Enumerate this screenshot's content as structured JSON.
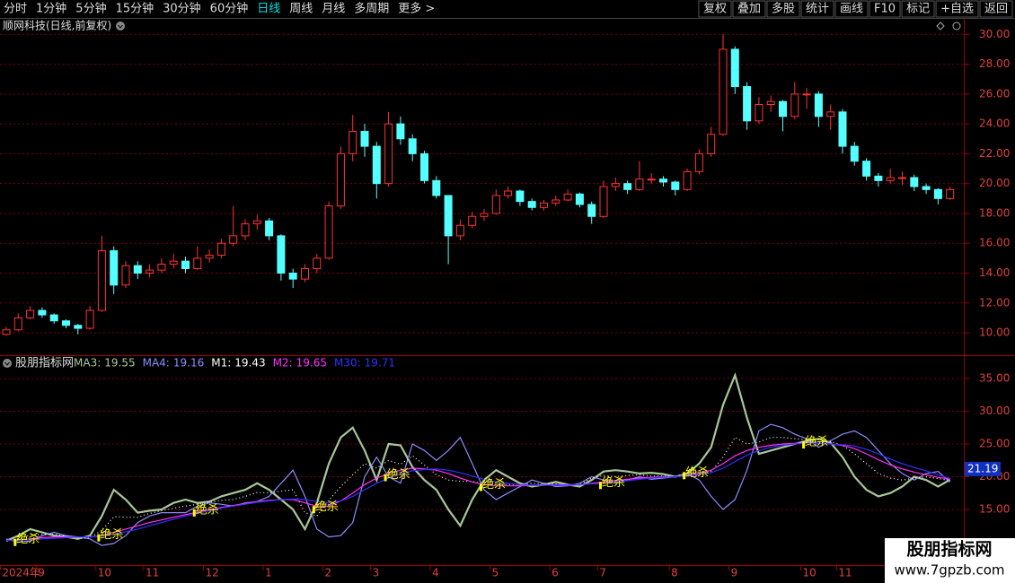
{
  "toolbar": {
    "left": [
      "分时",
      "1分钟",
      "5分钟",
      "15分钟",
      "30分钟",
      "60分钟",
      "日线",
      "周线",
      "月线",
      "多周期",
      "更多 >"
    ],
    "active": 6,
    "right": [
      "复权",
      "叠加",
      "多股",
      "统计",
      "画线",
      "F10",
      "标记",
      "+自选",
      "返回"
    ]
  },
  "chart_data": [
    {
      "type": "candlestick",
      "title": "顺网科技(日线,前复权)",
      "up_color": "#ff3232",
      "down_color": "#54ffff",
      "grid": true,
      "ylim": [
        8.5,
        31.1
      ],
      "yticks": [
        {
          "value": 10,
          "label": "10.00"
        },
        {
          "value": 12,
          "label": "12.00"
        },
        {
          "value": 14,
          "label": "14.00"
        },
        {
          "value": 16,
          "label": "16.00"
        },
        {
          "value": 18,
          "label": "18.00"
        },
        {
          "value": 20,
          "label": "20.00"
        },
        {
          "value": 22,
          "label": "22.00"
        },
        {
          "value": 24,
          "label": "24.00"
        },
        {
          "value": 26,
          "label": "26.00"
        },
        {
          "value": 28,
          "label": "28.00"
        },
        {
          "value": 30,
          "label": "30.00"
        }
      ],
      "ohlc": [
        [
          9.9,
          10.4,
          9.8,
          10.2
        ],
        [
          10.2,
          11.3,
          10.1,
          11
        ],
        [
          11,
          11.8,
          10.9,
          11.5
        ],
        [
          11.5,
          11.7,
          11,
          11.2
        ],
        [
          11.2,
          11.3,
          10.6,
          10.8
        ],
        [
          10.8,
          10.9,
          10.3,
          10.5
        ],
        [
          10.5,
          10.6,
          9.9,
          10.3
        ],
        [
          10.3,
          11.8,
          10.2,
          11.5
        ],
        [
          11.5,
          16.5,
          11.4,
          15.5
        ],
        [
          15.5,
          15.8,
          12.6,
          13.2
        ],
        [
          13.2,
          14.8,
          13,
          14.5
        ],
        [
          14.5,
          14.8,
          13.6,
          14
        ],
        [
          14,
          14.6,
          13.7,
          14.2
        ],
        [
          14.2,
          15,
          14,
          14.6
        ],
        [
          14.6,
          15.3,
          14.3,
          14.8
        ],
        [
          14.8,
          15.1,
          14,
          14.3
        ],
        [
          14.3,
          15.8,
          14.2,
          15
        ],
        [
          15,
          15.6,
          14.7,
          15.2
        ],
        [
          15.2,
          16.3,
          15,
          16
        ],
        [
          16,
          18.5,
          15.8,
          16.5
        ],
        [
          16.5,
          17.6,
          16.2,
          17.3
        ],
        [
          17.3,
          17.9,
          16.9,
          17.5
        ],
        [
          17.5,
          17.7,
          16.2,
          16.5
        ],
        [
          16.5,
          16.6,
          13.5,
          14
        ],
        [
          14,
          14.3,
          13,
          13.6
        ],
        [
          13.6,
          14.6,
          13.4,
          14.3
        ],
        [
          14.3,
          15.3,
          14,
          15
        ],
        [
          15,
          18.8,
          14.9,
          18.5
        ],
        [
          18.5,
          22.5,
          18.3,
          22
        ],
        [
          22,
          24.6,
          21.5,
          23.5
        ],
        [
          23.5,
          24,
          21.8,
          22.5
        ],
        [
          22.5,
          22.8,
          19,
          20
        ],
        [
          20,
          24.8,
          19.8,
          24
        ],
        [
          24,
          24.5,
          22.6,
          23
        ],
        [
          23,
          23.3,
          21.5,
          22
        ],
        [
          22,
          22.2,
          20,
          20.2
        ],
        [
          20.2,
          20.5,
          19,
          19.2
        ],
        [
          19.2,
          19.2,
          14.6,
          16.5
        ],
        [
          16.5,
          17.6,
          16.2,
          17.2
        ],
        [
          17.2,
          18.1,
          17,
          17.8
        ],
        [
          17.8,
          18.3,
          17.5,
          18
        ],
        [
          18,
          19.6,
          17.9,
          19.2
        ],
        [
          19.2,
          19.8,
          19,
          19.5
        ],
        [
          19.5,
          19.6,
          18.5,
          18.8
        ],
        [
          18.8,
          19,
          18.2,
          18.4
        ],
        [
          18.4,
          18.9,
          18.2,
          18.7
        ],
        [
          18.7,
          19.2,
          18.5,
          18.9
        ],
        [
          18.9,
          19.6,
          18.8,
          19.3
        ],
        [
          19.3,
          19.4,
          18.4,
          18.6
        ],
        [
          18.6,
          18.8,
          17.3,
          17.8
        ],
        [
          17.8,
          20.2,
          17.7,
          19.8
        ],
        [
          19.8,
          20.4,
          19.5,
          20
        ],
        [
          20,
          20.2,
          19.3,
          19.6
        ],
        [
          19.6,
          21.5,
          19.5,
          20.3
        ],
        [
          20.3,
          20.7,
          20,
          20.3
        ],
        [
          20.3,
          20.5,
          19.8,
          20.1
        ],
        [
          20.1,
          20.2,
          19.2,
          19.6
        ],
        [
          19.6,
          21,
          19.5,
          20.8
        ],
        [
          20.8,
          22.3,
          20.6,
          22
        ],
        [
          22,
          23.8,
          21.8,
          23.3
        ],
        [
          23.3,
          30,
          23.2,
          29
        ],
        [
          29,
          29.2,
          26,
          26.5
        ],
        [
          26.5,
          26.8,
          23.6,
          24.2
        ],
        [
          24.2,
          25.8,
          24,
          25.3
        ],
        [
          25.3,
          25.9,
          24.8,
          25.5
        ],
        [
          25.5,
          25.6,
          23.5,
          24.5
        ],
        [
          24.5,
          26.8,
          24.3,
          26
        ],
        [
          26,
          26.4,
          25,
          26
        ],
        [
          26,
          26.2,
          23.8,
          24.5
        ],
        [
          24.5,
          25.3,
          23.6,
          24.8
        ],
        [
          24.8,
          25,
          22,
          22.5
        ],
        [
          22.5,
          22.8,
          21.2,
          21.5
        ],
        [
          21.5,
          21.7,
          20.2,
          20.5
        ],
        [
          20.5,
          20.7,
          19.8,
          20.2
        ],
        [
          20.2,
          21,
          20,
          20.4
        ],
        [
          20.4,
          20.8,
          19.9,
          20.4
        ],
        [
          20.4,
          20.6,
          19.5,
          19.8
        ],
        [
          19.8,
          20,
          19.3,
          19.6
        ],
        [
          19.6,
          19.7,
          18.6,
          19
        ],
        [
          19,
          19.8,
          18.9,
          19.6
        ]
      ]
    },
    {
      "type": "line",
      "title": "股朋指标网",
      "grid": true,
      "ylim": [
        6.5,
        38.3
      ],
      "yticks": [
        {
          "value": 15,
          "label": "15.00"
        },
        {
          "value": 20,
          "label": "20.00"
        },
        {
          "value": 25,
          "label": "25.00"
        },
        {
          "value": 30,
          "label": "30.00"
        },
        {
          "value": 35,
          "label": "35.00"
        }
      ],
      "price_tag": 21.19,
      "categories": [
        "2024年",
        null,
        null,
        "9",
        null,
        null,
        null,
        null,
        "10",
        null,
        null,
        null,
        "11",
        null,
        null,
        null,
        null,
        "12",
        null,
        null,
        null,
        null,
        "1",
        null,
        null,
        null,
        null,
        "2",
        null,
        null,
        null,
        "3",
        null,
        null,
        null,
        null,
        "4",
        null,
        null,
        null,
        null,
        "5",
        null,
        null,
        null,
        null,
        "6",
        null,
        null,
        null,
        "7",
        null,
        null,
        null,
        null,
        null,
        "8",
        null,
        null,
        null,
        null,
        "9",
        null,
        null,
        null,
        null,
        null,
        "10",
        null,
        null,
        "11",
        null,
        null,
        null,
        null,
        null,
        null,
        null,
        null,
        null
      ],
      "series": [
        {
          "name": "MA3:",
          "color": "#a8c898",
          "values": [
            10.2,
            11,
            12,
            11.5,
            11,
            10.8,
            10.5,
            11,
            14,
            18,
            16.5,
            14.5,
            14.8,
            15,
            16,
            16.5,
            16,
            16.2,
            17,
            17.5,
            18,
            19,
            18,
            16.5,
            15,
            12,
            16,
            22,
            26,
            27.5,
            24,
            19.5,
            25,
            24.8,
            21.5,
            19.5,
            18,
            15,
            12.5,
            16.5,
            19.5,
            21,
            20,
            19,
            18.5,
            18.8,
            19.2,
            18.8,
            18.5,
            19.5,
            20.8,
            21,
            20.8,
            20.5,
            20.6,
            20.4,
            20,
            20.5,
            22,
            24.5,
            31,
            35.5,
            29,
            23.5,
            24,
            24.5,
            25,
            25.5,
            25.8,
            25.2,
            23,
            20,
            18,
            17,
            17.5,
            18.5,
            20,
            19.5,
            18.5,
            19.55
          ]
        },
        {
          "name": "MA4:",
          "color": "#8c8cff",
          "values": [
            10.5,
            10,
            10.2,
            11,
            11.5,
            11,
            10.8,
            10.5,
            9.5,
            9.8,
            11,
            13,
            14,
            14.5,
            14.5,
            14.5,
            15.5,
            16,
            15.8,
            15.5,
            16,
            16.2,
            17,
            19,
            21,
            17,
            12,
            10.8,
            11,
            13,
            20,
            23,
            20,
            19,
            25,
            24,
            22.5,
            24,
            26,
            22,
            18,
            16.5,
            17.5,
            18.5,
            19.5,
            19,
            18.5,
            18.6,
            19,
            20,
            19.5,
            19,
            19.5,
            20,
            19.6,
            19.8,
            20,
            20.5,
            19.5,
            17,
            15,
            16.5,
            21,
            27,
            28,
            27.5,
            26.5,
            25.8,
            24.5,
            25.5,
            26.5,
            27,
            26,
            24,
            22,
            20.5,
            19.5,
            20.5,
            20.8,
            19.16
          ]
        },
        {
          "name": "M1:",
          "color": "#ffffff",
          "values": [
            10.3,
            10.5,
            11.1,
            11.2,
            11.2,
            10.9,
            10.6,
            10.7,
            11.8,
            13.9,
            13.8,
            13.8,
            14.4,
            14.8,
            15.2,
            15.5,
            15.8,
            16.1,
            16.4,
            16.5,
            17,
            17.6,
            17.5,
            17.8,
            18,
            14.5,
            14,
            16.4,
            18.5,
            20.3,
            22,
            21.3,
            22.5,
            21.9,
            23.2,
            21.8,
            20.3,
            19.5,
            19.3,
            19.3,
            18.8,
            18.8,
            18.8,
            18.8,
            19,
            18.9,
            18.9,
            18.7,
            18.8,
            19.8,
            20.2,
            20,
            20.2,
            20.3,
            20.1,
            20.1,
            20,
            20.5,
            20.8,
            20.8,
            23,
            26,
            25,
            25.3,
            26,
            26,
            25.8,
            25.7,
            25.2,
            25.4,
            24.8,
            23.5,
            22,
            20.5,
            19.8,
            19.5,
            19.8,
            20,
            19.7,
            19.43
          ]
        },
        {
          "name": "M2:",
          "color": "#ff30ff",
          "values": [
            10.3,
            10.3,
            10.5,
            10.7,
            10.8,
            10.8,
            10.8,
            10.8,
            11,
            11.5,
            12,
            12.5,
            13,
            13.4,
            13.8,
            14.2,
            14.6,
            15,
            15.3,
            15.6,
            15.9,
            16.2,
            16.4,
            16.5,
            16.5,
            16,
            15.5,
            15.5,
            16.3,
            17.5,
            18.8,
            19.8,
            20.5,
            21,
            21.3,
            21.2,
            21,
            20.5,
            19.8,
            19.2,
            18.8,
            18.6,
            18.6,
            18.6,
            18.7,
            18.7,
            18.8,
            18.8,
            18.8,
            19,
            19.2,
            19.4,
            19.6,
            19.8,
            19.9,
            20,
            20,
            20.2,
            20.5,
            21,
            22,
            23.2,
            24,
            24.5,
            24.8,
            25,
            25.1,
            25.2,
            25.1,
            25,
            24.8,
            24.3,
            23.5,
            22.6,
            21.8,
            21.2,
            20.7,
            20.3,
            19.9,
            19.65
          ]
        },
        {
          "name": "M30:",
          "color": "#3030ff",
          "values": [
            10.3,
            10.3,
            10.4,
            10.5,
            10.6,
            10.7,
            10.8,
            10.8,
            10.9,
            11.2,
            11.6,
            12,
            12.5,
            13,
            13.5,
            14,
            14.4,
            14.8,
            15.2,
            15.5,
            15.8,
            16.1,
            16.3,
            16.5,
            16.6,
            16.5,
            16.2,
            16,
            16.3,
            17,
            18,
            19,
            19.8,
            20.4,
            20.9,
            21.1,
            21.2,
            21,
            20.6,
            20.1,
            19.6,
            19.2,
            19,
            18.8,
            18.7,
            18.7,
            18.7,
            18.7,
            18.8,
            18.9,
            19,
            19.2,
            19.4,
            19.6,
            19.8,
            19.9,
            20,
            20.1,
            20.3,
            20.6,
            21.3,
            22.3,
            23.3,
            24,
            24.5,
            24.8,
            25,
            25.1,
            25.1,
            25,
            24.9,
            24.7,
            24.2,
            23.5,
            22.7,
            22,
            21.4,
            20.9,
            20.3,
            19.71
          ]
        }
      ],
      "annotations": [
        {
          "text": "绝杀",
          "x": 1,
          "y": 10.1
        },
        {
          "text": "绝杀",
          "x": 8,
          "y": 10.8
        },
        {
          "text": "绝杀",
          "x": 16,
          "y": 14.6
        },
        {
          "text": "绝杀",
          "x": 26,
          "y": 15.1
        },
        {
          "text": "绝杀",
          "x": 32,
          "y": 20
        },
        {
          "text": "绝杀",
          "x": 40,
          "y": 18.5
        },
        {
          "text": "绝杀",
          "x": 50,
          "y": 18.8
        },
        {
          "text": "绝杀",
          "x": 57,
          "y": 20.3
        },
        {
          "text": "绝杀",
          "x": 67,
          "y": 25
        }
      ]
    }
  ],
  "watermark": {
    "title": "股朋指标网",
    "url": "www.7gpzb.com"
  }
}
